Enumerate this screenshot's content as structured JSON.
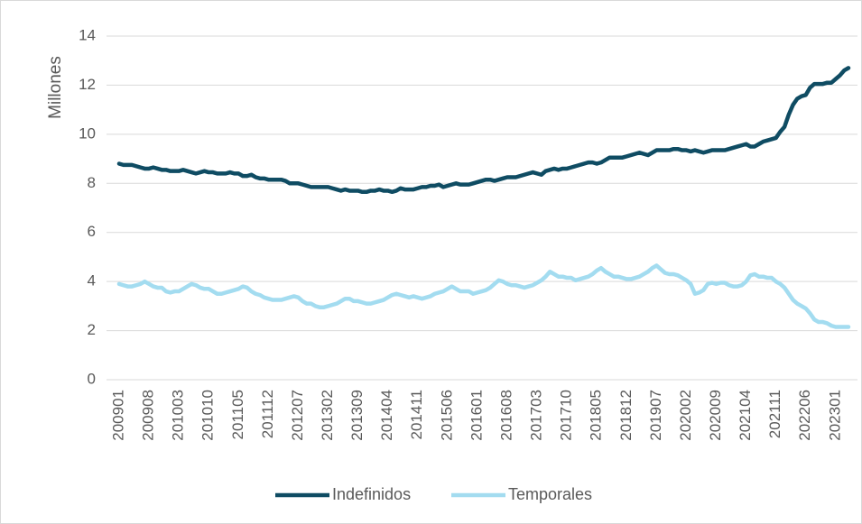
{
  "chart_data": {
    "type": "line",
    "y_label": "Millones",
    "categories": [
      "200901",
      null,
      null,
      null,
      null,
      null,
      null,
      "200908",
      null,
      null,
      null,
      null,
      null,
      null,
      "201003",
      null,
      null,
      null,
      null,
      null,
      null,
      "201010",
      null,
      null,
      null,
      null,
      null,
      null,
      "201105",
      null,
      null,
      null,
      null,
      null,
      null,
      "201112",
      null,
      null,
      null,
      null,
      null,
      null,
      "201207",
      null,
      null,
      null,
      null,
      null,
      null,
      "201302",
      null,
      null,
      null,
      null,
      null,
      null,
      "201309",
      null,
      null,
      null,
      null,
      null,
      null,
      "201404",
      null,
      null,
      null,
      null,
      null,
      null,
      "201411",
      null,
      null,
      null,
      null,
      null,
      null,
      "201506",
      null,
      null,
      null,
      null,
      null,
      null,
      "201601",
      null,
      null,
      null,
      null,
      null,
      null,
      "201608",
      null,
      null,
      null,
      null,
      null,
      null,
      "201703",
      null,
      null,
      null,
      null,
      null,
      null,
      "201710",
      null,
      null,
      null,
      null,
      null,
      null,
      "201805",
      null,
      null,
      null,
      null,
      null,
      null,
      "201812",
      null,
      null,
      null,
      null,
      null,
      null,
      "201907",
      null,
      null,
      null,
      null,
      null,
      null,
      "202002",
      null,
      null,
      null,
      null,
      null,
      null,
      "202009",
      null,
      null,
      null,
      null,
      null,
      null,
      "202104",
      null,
      null,
      null,
      null,
      null,
      null,
      "202111",
      null,
      null,
      null,
      null,
      null,
      null,
      "202206",
      null,
      null,
      null,
      null,
      null,
      null,
      "202301",
      null,
      null,
      null
    ],
    "series": [
      {
        "name": "Indefinidos",
        "color": "#0f4c63",
        "values": [
          8.8,
          8.75,
          8.75,
          8.75,
          8.7,
          8.65,
          8.6,
          8.6,
          8.65,
          8.6,
          8.55,
          8.55,
          8.5,
          8.5,
          8.5,
          8.55,
          8.5,
          8.45,
          8.4,
          8.45,
          8.5,
          8.45,
          8.45,
          8.4,
          8.4,
          8.4,
          8.45,
          8.4,
          8.4,
          8.3,
          8.3,
          8.35,
          8.25,
          8.2,
          8.2,
          8.15,
          8.15,
          8.15,
          8.15,
          8.1,
          8.0,
          8.0,
          8.0,
          7.95,
          7.9,
          7.85,
          7.85,
          7.85,
          7.85,
          7.85,
          7.8,
          7.75,
          7.7,
          7.75,
          7.7,
          7.7,
          7.7,
          7.65,
          7.65,
          7.7,
          7.7,
          7.75,
          7.7,
          7.7,
          7.65,
          7.7,
          7.8,
          7.75,
          7.75,
          7.75,
          7.8,
          7.85,
          7.85,
          7.9,
          7.9,
          7.95,
          7.85,
          7.9,
          7.95,
          8.0,
          7.95,
          7.95,
          7.95,
          8.0,
          8.05,
          8.1,
          8.15,
          8.15,
          8.1,
          8.15,
          8.2,
          8.25,
          8.25,
          8.25,
          8.3,
          8.35,
          8.4,
          8.45,
          8.4,
          8.35,
          8.5,
          8.55,
          8.6,
          8.55,
          8.6,
          8.6,
          8.65,
          8.7,
          8.75,
          8.8,
          8.85,
          8.85,
          8.8,
          8.85,
          8.95,
          9.05,
          9.05,
          9.05,
          9.05,
          9.1,
          9.15,
          9.2,
          9.25,
          9.2,
          9.15,
          9.25,
          9.35,
          9.35,
          9.35,
          9.35,
          9.4,
          9.4,
          9.35,
          9.35,
          9.3,
          9.35,
          9.3,
          9.25,
          9.3,
          9.35,
          9.35,
          9.35,
          9.35,
          9.4,
          9.45,
          9.5,
          9.55,
          9.6,
          9.5,
          9.5,
          9.6,
          9.7,
          9.75,
          9.8,
          9.85,
          10.1,
          10.3,
          10.8,
          11.2,
          11.45,
          11.55,
          11.6,
          11.9,
          12.05,
          12.05,
          12.05,
          12.1,
          12.1,
          12.25,
          12.4,
          12.6,
          12.7
        ]
      },
      {
        "name": "Temporales",
        "color": "#a3dcf0",
        "values": [
          3.9,
          3.85,
          3.8,
          3.8,
          3.85,
          3.9,
          4.0,
          3.9,
          3.8,
          3.75,
          3.75,
          3.6,
          3.55,
          3.6,
          3.6,
          3.7,
          3.8,
          3.9,
          3.85,
          3.75,
          3.7,
          3.7,
          3.6,
          3.5,
          3.5,
          3.55,
          3.6,
          3.65,
          3.7,
          3.8,
          3.75,
          3.6,
          3.5,
          3.45,
          3.35,
          3.3,
          3.25,
          3.25,
          3.25,
          3.3,
          3.35,
          3.4,
          3.35,
          3.2,
          3.1,
          3.1,
          3.0,
          2.95,
          2.95,
          3.0,
          3.05,
          3.1,
          3.2,
          3.3,
          3.3,
          3.2,
          3.2,
          3.15,
          3.1,
          3.1,
          3.15,
          3.2,
          3.25,
          3.35,
          3.45,
          3.5,
          3.45,
          3.4,
          3.35,
          3.4,
          3.35,
          3.3,
          3.35,
          3.4,
          3.5,
          3.55,
          3.6,
          3.7,
          3.8,
          3.7,
          3.6,
          3.6,
          3.6,
          3.5,
          3.55,
          3.6,
          3.65,
          3.75,
          3.9,
          4.05,
          4.0,
          3.9,
          3.85,
          3.85,
          3.8,
          3.75,
          3.8,
          3.85,
          3.95,
          4.05,
          4.2,
          4.4,
          4.3,
          4.2,
          4.2,
          4.15,
          4.15,
          4.05,
          4.1,
          4.15,
          4.2,
          4.3,
          4.45,
          4.55,
          4.4,
          4.3,
          4.2,
          4.2,
          4.15,
          4.1,
          4.1,
          4.15,
          4.2,
          4.3,
          4.4,
          4.55,
          4.65,
          4.5,
          4.35,
          4.3,
          4.3,
          4.25,
          4.15,
          4.05,
          3.9,
          3.5,
          3.55,
          3.65,
          3.9,
          3.95,
          3.9,
          3.95,
          3.95,
          3.85,
          3.8,
          3.8,
          3.85,
          4.0,
          4.25,
          4.3,
          4.2,
          4.2,
          4.15,
          4.15,
          4.0,
          3.9,
          3.75,
          3.5,
          3.25,
          3.1,
          3.0,
          2.9,
          2.7,
          2.45,
          2.35,
          2.35,
          2.3,
          2.2,
          2.15,
          2.15,
          2.15,
          2.15
        ]
      }
    ],
    "ylim": [
      0,
      14
    ],
    "yticks": [
      0,
      2,
      4,
      6,
      8,
      10,
      12,
      14
    ],
    "grid": true,
    "legend": "bottom"
  }
}
